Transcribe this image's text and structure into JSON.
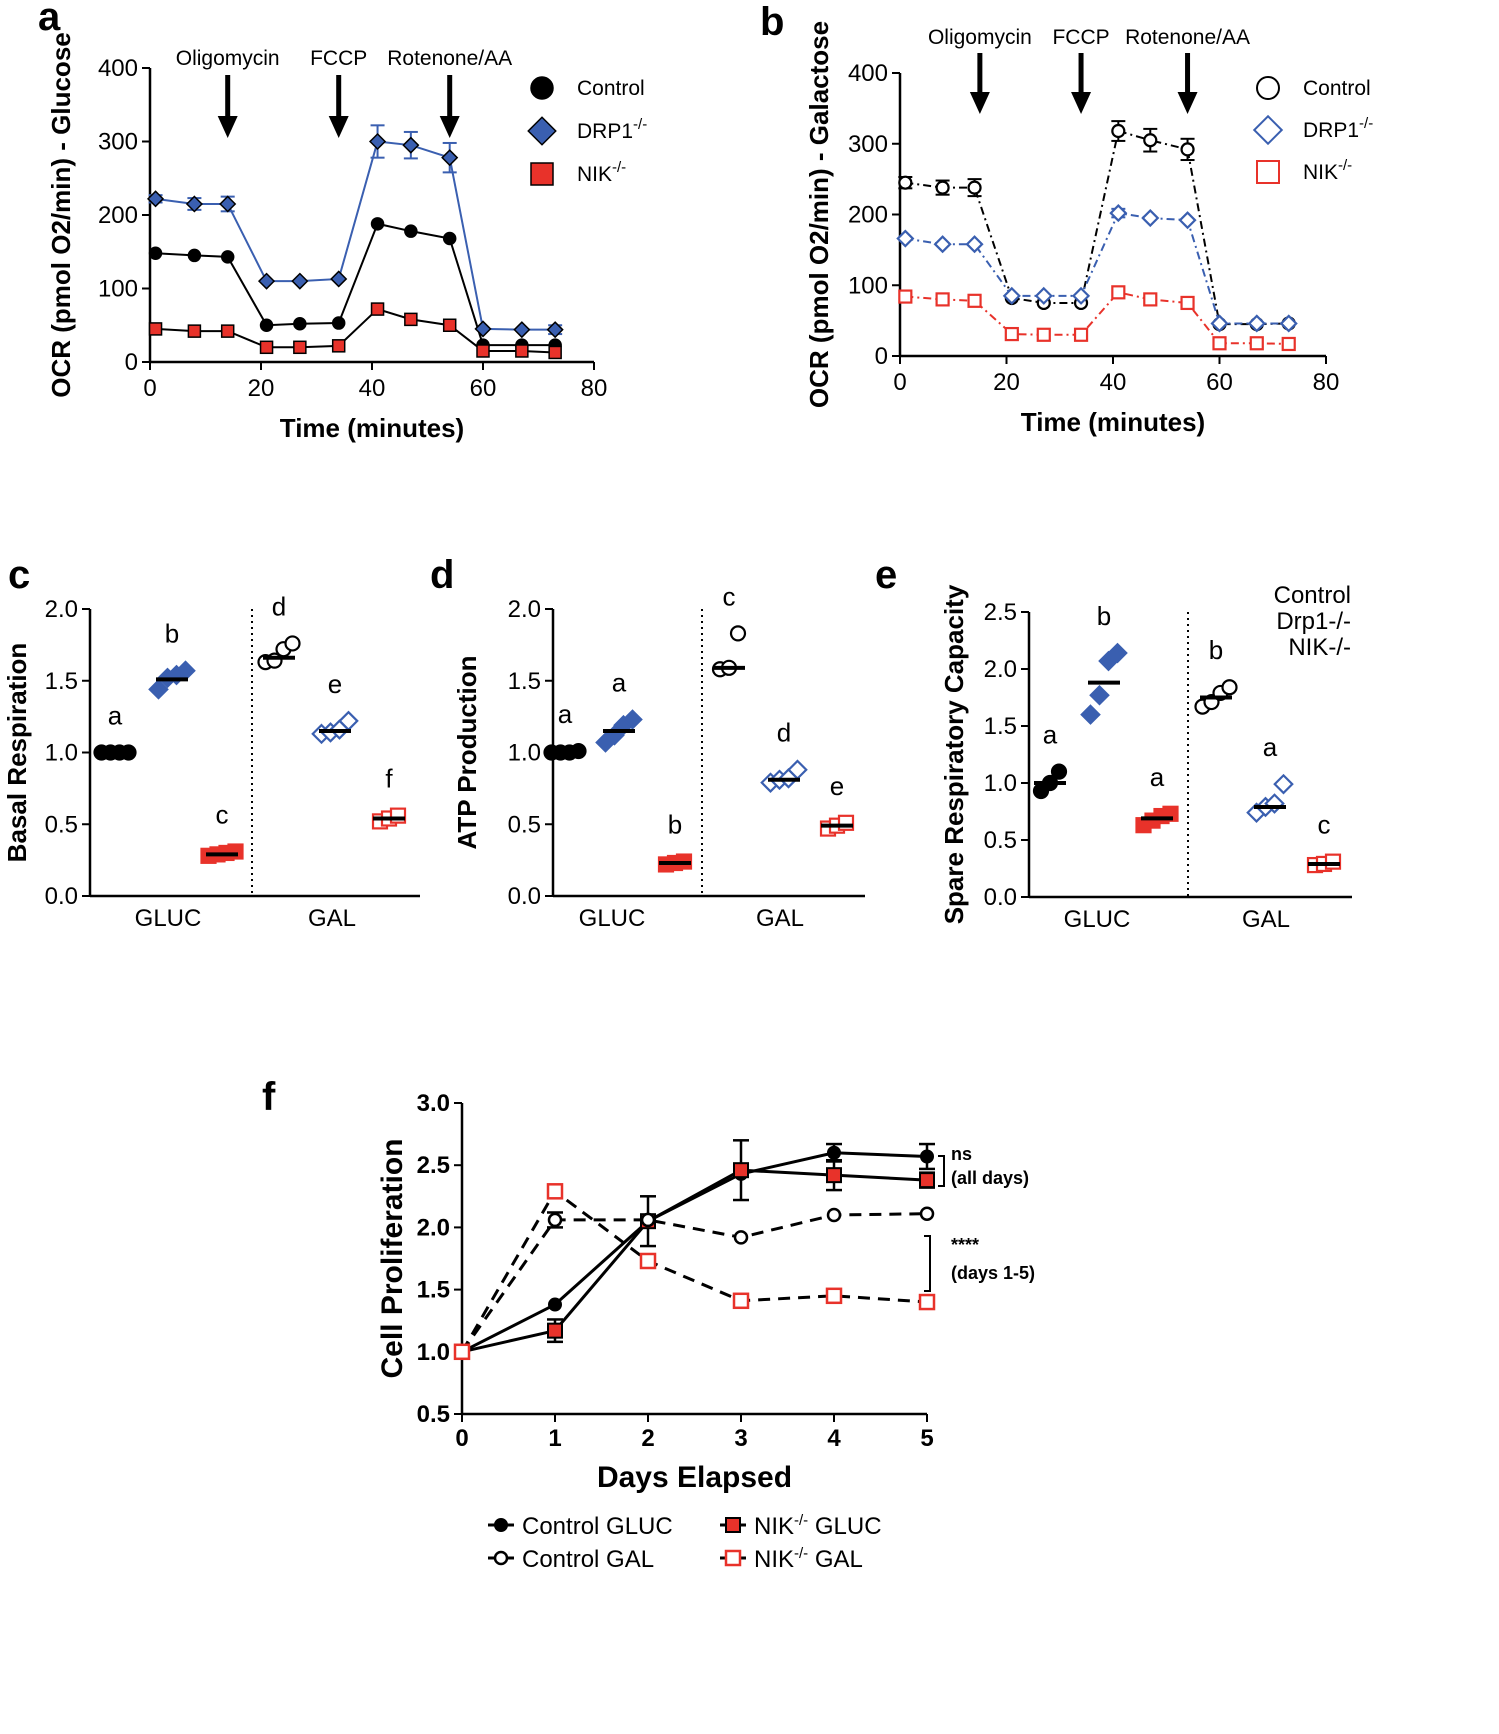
{
  "chart_data": [
    {
      "panel": "a",
      "type": "line",
      "xlabel": "Time (minutes)",
      "ylabel": "OCR (pmol O2/min) - Glucose",
      "xlim": [
        0,
        80
      ],
      "ylim": [
        0,
        400
      ],
      "xticks": [
        0,
        20,
        40,
        60,
        80
      ],
      "yticks": [
        0,
        100,
        200,
        300,
        400
      ],
      "injections": [
        {
          "label": "Oligomycin",
          "x": 14
        },
        {
          "label": "FCCP",
          "x": 34
        },
        {
          "label": "Rotenone/AA",
          "x": 54
        }
      ],
      "x": [
        1,
        8,
        14,
        21,
        27,
        34,
        41,
        47,
        54,
        60,
        67,
        73
      ],
      "series": [
        {
          "name": "Control",
          "sup": "",
          "marker": "circle",
          "fill": "#000000",
          "stroke": "#000000",
          "line": "#000000",
          "dash": "",
          "values": [
            148,
            145,
            143,
            50,
            52,
            53,
            188,
            178,
            168,
            23,
            23,
            23
          ],
          "err": [
            0,
            0,
            0,
            0,
            0,
            0,
            0,
            0,
            0,
            0,
            0,
            0
          ]
        },
        {
          "name": "DRP1",
          "sup": "-/-",
          "marker": "diamond",
          "fill": "#3a5fb0",
          "stroke": "#000000",
          "line": "#3a5fb0",
          "dash": "",
          "values": [
            222,
            215,
            215,
            110,
            110,
            113,
            300,
            295,
            278,
            45,
            44,
            44
          ],
          "err": [
            5,
            8,
            10,
            0,
            0,
            0,
            22,
            18,
            20,
            0,
            0,
            6
          ]
        },
        {
          "name": "NIK",
          "sup": "-/-",
          "marker": "square",
          "fill": "#e8322a",
          "stroke": "#000000",
          "line": "#000000",
          "dash": "",
          "values": [
            45,
            42,
            42,
            20,
            20,
            22,
            72,
            58,
            50,
            15,
            15,
            13
          ],
          "err": [
            0,
            0,
            0,
            0,
            0,
            0,
            0,
            0,
            0,
            0,
            0,
            0
          ]
        }
      ]
    },
    {
      "panel": "b",
      "type": "line",
      "xlabel": "Time (minutes)",
      "ylabel": "OCR (pmol O2/min) - Galactose",
      "xlim": [
        0,
        80
      ],
      "ylim": [
        0,
        400
      ],
      "xticks": [
        0,
        20,
        40,
        60,
        80
      ],
      "yticks": [
        0,
        100,
        200,
        300,
        400
      ],
      "injections": [
        {
          "label": "Oligomycin",
          "x": 15
        },
        {
          "label": "FCCP",
          "x": 34
        },
        {
          "label": "Rotenone/AA",
          "x": 54
        }
      ],
      "x": [
        1,
        8,
        14,
        21,
        27,
        34,
        41,
        47,
        54,
        60,
        67,
        73
      ],
      "series": [
        {
          "name": "Control",
          "sup": "",
          "marker": "circle",
          "fill": "#ffffff",
          "stroke": "#000000",
          "line": "#000000",
          "dash": "8 4 2 4",
          "values": [
            245,
            238,
            238,
            82,
            75,
            75,
            318,
            305,
            292,
            45,
            45,
            46
          ],
          "err": [
            8,
            10,
            12,
            0,
            0,
            0,
            14,
            16,
            15,
            0,
            0,
            0
          ]
        },
        {
          "name": "DRP1",
          "sup": "-/-",
          "marker": "diamond",
          "fill": "#ffffff",
          "stroke": "#3a5fb0",
          "line": "#3a5fb0",
          "dash": "8 4 2 4",
          "values": [
            166,
            158,
            158,
            85,
            85,
            85,
            202,
            195,
            192,
            46,
            46,
            46
          ],
          "err": [
            0,
            0,
            0,
            0,
            0,
            0,
            6,
            0,
            0,
            0,
            0,
            0
          ]
        },
        {
          "name": "NIK",
          "sup": "-/-",
          "marker": "square",
          "fill": "#ffffff",
          "stroke": "#e8322a",
          "line": "#e8322a",
          "dash": "8 4 2 4",
          "values": [
            84,
            80,
            78,
            31,
            30,
            30,
            90,
            80,
            75,
            18,
            18,
            17
          ],
          "err": [
            0,
            0,
            0,
            0,
            0,
            0,
            0,
            0,
            0,
            0,
            0,
            0
          ]
        }
      ]
    },
    {
      "panel": "c",
      "type": "scatter",
      "ylabel": "Basal Respiration",
      "ylim": [
        0,
        2.0
      ],
      "yticks": [
        "0.0",
        "0.5",
        "1.0",
        "1.5",
        "2.0"
      ],
      "categories": [
        "GLUC",
        "GAL"
      ],
      "groups": [
        {
          "cat": "GLUC",
          "series": "Control",
          "marker": "circle",
          "filled": true,
          "color": "#000000",
          "mean": 1.0,
          "points": [
            1.0,
            1.0,
            1.0,
            1.0
          ],
          "letter": "a"
        },
        {
          "cat": "GLUC",
          "series": "Drp1-/-",
          "marker": "diamond",
          "filled": true,
          "color": "#3a5fb0",
          "mean": 1.51,
          "points": [
            1.44,
            1.52,
            1.54,
            1.57
          ],
          "letter": "b"
        },
        {
          "cat": "GLUC",
          "series": "NIK-/-",
          "marker": "square",
          "filled": true,
          "color": "#e8322a",
          "mean": 0.29,
          "points": [
            0.28,
            0.29,
            0.3,
            0.31
          ],
          "letter": "c"
        },
        {
          "cat": "GAL",
          "series": "Control",
          "marker": "circle",
          "filled": false,
          "color": "#000000",
          "mean": 1.66,
          "points": [
            1.63,
            1.64,
            1.72,
            1.76
          ],
          "letter": "d"
        },
        {
          "cat": "GAL",
          "series": "Drp1-/-",
          "marker": "diamond",
          "filled": false,
          "color": "#3a5fb0",
          "mean": 1.15,
          "points": [
            1.13,
            1.14,
            1.16,
            1.22
          ],
          "letter": "e"
        },
        {
          "cat": "GAL",
          "series": "NIK-/-",
          "marker": "square",
          "filled": false,
          "color": "#e8322a",
          "mean": 0.54,
          "points": [
            0.52,
            0.54,
            0.56
          ],
          "letter": "f"
        }
      ]
    },
    {
      "panel": "d",
      "type": "scatter",
      "ylabel": "ATP Production",
      "ylim": [
        0,
        2.0
      ],
      "yticks": [
        "0.0",
        "0.5",
        "1.0",
        "1.5",
        "2.0"
      ],
      "categories": [
        "GLUC",
        "GAL"
      ],
      "groups": [
        {
          "cat": "GLUC",
          "series": "Control",
          "marker": "circle",
          "filled": true,
          "color": "#000000",
          "mean": 1.0,
          "points": [
            1.0,
            1.0,
            1.0,
            1.01
          ],
          "letter": "a"
        },
        {
          "cat": "GLUC",
          "series": "Drp1-/-",
          "marker": "diamond",
          "filled": true,
          "color": "#3a5fb0",
          "mean": 1.15,
          "points": [
            1.07,
            1.12,
            1.19,
            1.23
          ],
          "letter": "a"
        },
        {
          "cat": "GLUC",
          "series": "NIK-/-",
          "marker": "square",
          "filled": true,
          "color": "#e8322a",
          "mean": 0.23,
          "points": [
            0.22,
            0.23,
            0.24
          ],
          "letter": "b"
        },
        {
          "cat": "GAL",
          "series": "Control",
          "marker": "circle",
          "filled": false,
          "color": "#000000",
          "mean": 1.59,
          "points": [
            1.58,
            1.59,
            1.83
          ],
          "letter": "c"
        },
        {
          "cat": "GAL",
          "series": "Drp1-/-",
          "marker": "diamond",
          "filled": false,
          "color": "#3a5fb0",
          "mean": 0.81,
          "points": [
            0.79,
            0.81,
            0.82,
            0.88
          ],
          "letter": "d"
        },
        {
          "cat": "GAL",
          "series": "NIK-/-",
          "marker": "square",
          "filled": false,
          "color": "#e8322a",
          "mean": 0.49,
          "points": [
            0.47,
            0.49,
            0.51
          ],
          "letter": "e"
        }
      ]
    },
    {
      "panel": "e",
      "type": "scatter",
      "ylabel": "Spare Respiratory Capacity",
      "ylim": [
        0,
        2.5
      ],
      "yticks": [
        "0.0",
        "0.5",
        "1.0",
        "1.5",
        "2.0",
        "2.5"
      ],
      "categories": [
        "GLUC",
        "GAL"
      ],
      "legend": [
        {
          "label": "Control",
          "color": "#000000"
        },
        {
          "label": "Drp1-/-",
          "color": "#3a5fb0"
        },
        {
          "label": "NIK-/-",
          "color": "#e8322a"
        }
      ],
      "groups": [
        {
          "cat": "GLUC",
          "series": "Control",
          "marker": "circle",
          "filled": true,
          "color": "#000000",
          "mean": 1.0,
          "points": [
            0.93,
            1.0,
            1.1
          ],
          "letter": "a"
        },
        {
          "cat": "GLUC",
          "series": "Drp1-/-",
          "marker": "diamond",
          "filled": true,
          "color": "#3a5fb0",
          "mean": 1.88,
          "points": [
            1.6,
            1.77,
            2.07,
            2.14
          ],
          "letter": "b"
        },
        {
          "cat": "GLUC",
          "series": "NIK-/-",
          "marker": "square",
          "filled": true,
          "color": "#e8322a",
          "mean": 0.69,
          "points": [
            0.63,
            0.67,
            0.71,
            0.73
          ],
          "letter": "a"
        },
        {
          "cat": "GAL",
          "series": "Control",
          "marker": "circle",
          "filled": false,
          "color": "#000000",
          "mean": 1.75,
          "points": [
            1.67,
            1.71,
            1.79,
            1.84
          ],
          "letter": "b"
        },
        {
          "cat": "GAL",
          "series": "Drp1-/-",
          "marker": "diamond",
          "filled": false,
          "color": "#3a5fb0",
          "mean": 0.79,
          "points": [
            0.74,
            0.79,
            0.82,
            0.99
          ],
          "letter": "a"
        },
        {
          "cat": "GAL",
          "series": "NIK-/-",
          "marker": "square",
          "filled": false,
          "color": "#e8322a",
          "mean": 0.29,
          "points": [
            0.28,
            0.29,
            0.31
          ],
          "letter": "c"
        }
      ]
    },
    {
      "panel": "f",
      "type": "line",
      "xlabel": "Days Elapsed",
      "ylabel": "Cell Proliferation",
      "xlim": [
        0,
        5
      ],
      "ylim": [
        0.5,
        3.0
      ],
      "xticks": [
        "0",
        "1",
        "2",
        "3",
        "4",
        "5"
      ],
      "yticks": [
        "0.5",
        "1.0",
        "1.5",
        "2.0",
        "2.5",
        "3.0"
      ],
      "x": [
        0,
        1,
        2,
        3,
        4,
        5
      ],
      "series": [
        {
          "name": "Control GLUC",
          "sup": "",
          "marker": "circle",
          "fill": "#000000",
          "stroke": "#000000",
          "line": "#000000",
          "dash": "",
          "values": [
            1.0,
            1.38,
            2.05,
            2.43,
            2.6,
            2.57
          ],
          "err": [
            0,
            0,
            0,
            0,
            0.07,
            0.1
          ]
        },
        {
          "name": "NIK",
          "suffix": " GLUC",
          "sup": "-/-",
          "marker": "square",
          "fill": "#e8322a",
          "stroke": "#000000",
          "line": "#000000",
          "dash": "",
          "values": [
            1.0,
            1.17,
            2.05,
            2.46,
            2.42,
            2.38
          ],
          "err": [
            0,
            0.09,
            0.2,
            0.24,
            0.12,
            0.06
          ]
        },
        {
          "name": "Control GAL",
          "sup": "",
          "marker": "circle",
          "fill": "#ffffff",
          "stroke": "#000000",
          "line": "#000000",
          "dash": "12 8",
          "values": [
            1.0,
            2.06,
            2.06,
            1.92,
            2.1,
            2.11
          ],
          "err": [
            0,
            0.06,
            0,
            0,
            0,
            0
          ]
        },
        {
          "name": "NIK",
          "suffix": " GAL",
          "sup": "-/-",
          "marker": "square",
          "fill": "#ffffff",
          "stroke": "#e8322a",
          "line": "#000000",
          "dash": "12 8",
          "values": [
            1.0,
            2.29,
            1.73,
            1.41,
            1.45,
            1.4
          ],
          "err": [
            0,
            0,
            0,
            0,
            0,
            0
          ]
        }
      ],
      "annotations": [
        {
          "line1": "ns",
          "line2": "(all days)"
        },
        {
          "line1": "****",
          "line2": "(days 1-5)"
        }
      ]
    }
  ]
}
